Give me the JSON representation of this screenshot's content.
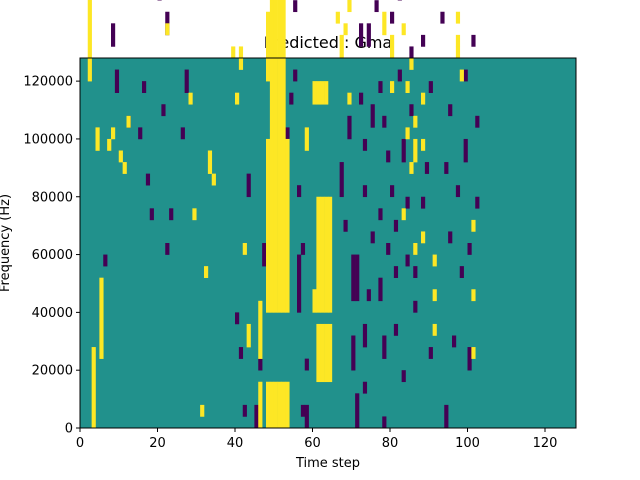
{
  "chart_data": {
    "type": "heatmap",
    "title": "Predicted : Gma",
    "xlabel": "Time step",
    "ylabel": "Frequency (Hz)",
    "xlim": [
      0,
      128
    ],
    "ylim": [
      0,
      128000
    ],
    "x_ticks": [
      0,
      20,
      40,
      60,
      80,
      100,
      120
    ],
    "y_ticks": [
      0,
      20000,
      40000,
      60000,
      80000,
      100000,
      120000
    ],
    "grid": false,
    "legend": "none",
    "colors": {
      "background": "#21918c",
      "high": "#fde725",
      "low": "#440154"
    },
    "n_time_steps": 128,
    "n_freq_bins": 64,
    "freq_bin_width_hz": 2000,
    "high_cells": [
      [
        2,
        60,
        64
      ],
      [
        3,
        0,
        14
      ],
      [
        4,
        48,
        4
      ],
      [
        5,
        12,
        14
      ],
      [
        7,
        48,
        2
      ],
      [
        8,
        50,
        2
      ],
      [
        10,
        46,
        2
      ],
      [
        11,
        44,
        2
      ],
      [
        12,
        52,
        2
      ],
      [
        22,
        68,
        2
      ],
      [
        28,
        56,
        2
      ],
      [
        29,
        36,
        2
      ],
      [
        31,
        2,
        2
      ],
      [
        32,
        26,
        2
      ],
      [
        33,
        44,
        4
      ],
      [
        34,
        42,
        2
      ],
      [
        38,
        82,
        2
      ],
      [
        39,
        64,
        2
      ],
      [
        40,
        56,
        2
      ],
      [
        41,
        62,
        4
      ],
      [
        42,
        30,
        2
      ],
      [
        43,
        14,
        4
      ],
      [
        46,
        0,
        8
      ],
      [
        46,
        12,
        10
      ],
      [
        48,
        0,
        8
      ],
      [
        48,
        20,
        30
      ],
      [
        48,
        60,
        12
      ],
      [
        49,
        0,
        8
      ],
      [
        49,
        20,
        60
      ],
      [
        49,
        82,
        6
      ],
      [
        50,
        0,
        8
      ],
      [
        50,
        20,
        60
      ],
      [
        50,
        82,
        6
      ],
      [
        51,
        0,
        8
      ],
      [
        51,
        20,
        60
      ],
      [
        51,
        82,
        6
      ],
      [
        52,
        0,
        8
      ],
      [
        52,
        20,
        60
      ],
      [
        53,
        0,
        8
      ],
      [
        53,
        20,
        30
      ],
      [
        58,
        48,
        4
      ],
      [
        60,
        20,
        4
      ],
      [
        60,
        56,
        4
      ],
      [
        61,
        8,
        10
      ],
      [
        61,
        20,
        20
      ],
      [
        61,
        56,
        4
      ],
      [
        62,
        8,
        10
      ],
      [
        62,
        20,
        20
      ],
      [
        62,
        56,
        4
      ],
      [
        63,
        8,
        10
      ],
      [
        63,
        20,
        20
      ],
      [
        63,
        56,
        4
      ],
      [
        64,
        8,
        10
      ],
      [
        64,
        20,
        20
      ],
      [
        66,
        70,
        2
      ],
      [
        66,
        84,
        4
      ],
      [
        66,
        96,
        4
      ],
      [
        67,
        64,
        4
      ],
      [
        67,
        76,
        4
      ],
      [
        67,
        90,
        4
      ],
      [
        67,
        100,
        4
      ],
      [
        68,
        68,
        2
      ],
      [
        68,
        92,
        2
      ],
      [
        69,
        56,
        2
      ],
      [
        69,
        72,
        4
      ],
      [
        78,
        68,
        4
      ],
      [
        78,
        86,
        2
      ],
      [
        79,
        76,
        2
      ],
      [
        79,
        90,
        4
      ],
      [
        80,
        58,
        2
      ],
      [
        80,
        64,
        4
      ],
      [
        83,
        36,
        2
      ],
      [
        83,
        68,
        2
      ],
      [
        84,
        50,
        2
      ],
      [
        84,
        58,
        2
      ],
      [
        85,
        44,
        2
      ],
      [
        85,
        62,
        2
      ],
      [
        86,
        30,
        2
      ],
      [
        86,
        46,
        4
      ],
      [
        86,
        52,
        2
      ],
      [
        88,
        56,
        2
      ],
      [
        88,
        48,
        2
      ],
      [
        88,
        32,
        2
      ],
      [
        91,
        16,
        2
      ],
      [
        91,
        22,
        2
      ],
      [
        91,
        28,
        2
      ],
      [
        97,
        64,
        2
      ],
      [
        97,
        70,
        2
      ],
      [
        97,
        66,
        2
      ],
      [
        98,
        76,
        2
      ],
      [
        98,
        88,
        2
      ],
      [
        98,
        60,
        2
      ],
      [
        101,
        12,
        2
      ],
      [
        101,
        22,
        2
      ],
      [
        101,
        34,
        2
      ]
    ],
    "low_cells": [
      [
        3,
        78,
        2
      ],
      [
        6,
        28,
        2
      ],
      [
        8,
        66,
        4
      ],
      [
        9,
        58,
        4
      ],
      [
        12,
        52,
        2
      ],
      [
        13,
        92,
        2
      ],
      [
        14,
        86,
        2
      ],
      [
        15,
        50,
        2
      ],
      [
        16,
        58,
        2
      ],
      [
        17,
        42,
        2
      ],
      [
        18,
        36,
        2
      ],
      [
        19,
        76,
        2
      ],
      [
        20,
        74,
        2
      ],
      [
        21,
        54,
        2
      ],
      [
        22,
        68,
        4
      ],
      [
        22,
        30,
        2
      ],
      [
        23,
        36,
        2
      ],
      [
        24,
        92,
        2
      ],
      [
        25,
        86,
        2
      ],
      [
        26,
        50,
        2
      ],
      [
        27,
        58,
        4
      ],
      [
        40,
        18,
        2
      ],
      [
        41,
        12,
        2
      ],
      [
        42,
        2,
        2
      ],
      [
        43,
        40,
        4
      ],
      [
        45,
        0,
        4
      ],
      [
        46,
        10,
        2
      ],
      [
        47,
        28,
        4
      ],
      [
        53,
        50,
        2
      ],
      [
        54,
        56,
        2
      ],
      [
        55,
        60,
        2
      ],
      [
        55,
        72,
        2
      ],
      [
        56,
        20,
        10
      ],
      [
        56,
        40,
        2
      ],
      [
        57,
        30,
        2
      ],
      [
        57,
        2,
        2
      ],
      [
        58,
        0,
        4
      ],
      [
        58,
        10,
        2
      ],
      [
        67,
        40,
        6
      ],
      [
        68,
        34,
        2
      ],
      [
        69,
        50,
        4
      ],
      [
        70,
        22,
        8
      ],
      [
        70,
        10,
        6
      ],
      [
        71,
        22,
        8
      ],
      [
        71,
        0,
        6
      ],
      [
        72,
        56,
        2
      ],
      [
        72,
        66,
        4
      ],
      [
        72,
        80,
        4
      ],
      [
        72,
        90,
        2
      ],
      [
        73,
        14,
        4
      ],
      [
        73,
        6,
        2
      ],
      [
        73,
        40,
        2
      ],
      [
        73,
        48,
        2
      ],
      [
        74,
        22,
        2
      ],
      [
        74,
        66,
        4
      ],
      [
        74,
        84,
        2
      ],
      [
        75,
        32,
        2
      ],
      [
        75,
        52,
        4
      ],
      [
        75,
        76,
        2
      ],
      [
        76,
        72,
        2
      ],
      [
        76,
        86,
        2
      ],
      [
        76,
        94,
        2
      ],
      [
        76,
        104,
        4
      ],
      [
        77,
        22,
        4
      ],
      [
        77,
        58,
        2
      ],
      [
        77,
        36,
        2
      ],
      [
        78,
        0,
        2
      ],
      [
        78,
        12,
        4
      ],
      [
        78,
        52,
        2
      ],
      [
        79,
        30,
        2
      ],
      [
        79,
        46,
        2
      ],
      [
        80,
        40,
        2
      ],
      [
        80,
        70,
        2
      ],
      [
        80,
        84,
        2
      ],
      [
        80,
        102,
        2
      ],
      [
        81,
        16,
        2
      ],
      [
        81,
        26,
        2
      ],
      [
        81,
        34,
        2
      ],
      [
        82,
        60,
        2
      ],
      [
        82,
        74,
        2
      ],
      [
        82,
        88,
        2
      ],
      [
        83,
        46,
        4
      ],
      [
        83,
        8,
        2
      ],
      [
        84,
        28,
        2
      ],
      [
        84,
        38,
        2
      ],
      [
        85,
        54,
        2
      ],
      [
        85,
        64,
        2
      ],
      [
        86,
        20,
        2
      ],
      [
        86,
        26,
        2
      ],
      [
        88,
        38,
        2
      ],
      [
        88,
        66,
        2
      ],
      [
        89,
        44,
        2
      ],
      [
        89,
        96,
        2
      ],
      [
        90,
        58,
        2
      ],
      [
        90,
        12,
        2
      ],
      [
        91,
        86,
        2
      ],
      [
        92,
        102,
        2
      ],
      [
        93,
        70,
        2
      ],
      [
        94,
        44,
        2
      ],
      [
        94,
        0,
        4
      ],
      [
        95,
        54,
        2
      ],
      [
        95,
        32,
        2
      ],
      [
        96,
        84,
        2
      ],
      [
        96,
        14,
        2
      ],
      [
        97,
        40,
        2
      ],
      [
        98,
        26,
        2
      ],
      [
        99,
        46,
        4
      ],
      [
        99,
        60,
        2
      ],
      [
        100,
        10,
        4
      ],
      [
        100,
        30,
        2
      ],
      [
        101,
        66,
        2
      ],
      [
        101,
        80,
        2
      ],
      [
        102,
        52,
        2
      ],
      [
        102,
        38,
        2
      ]
    ]
  }
}
